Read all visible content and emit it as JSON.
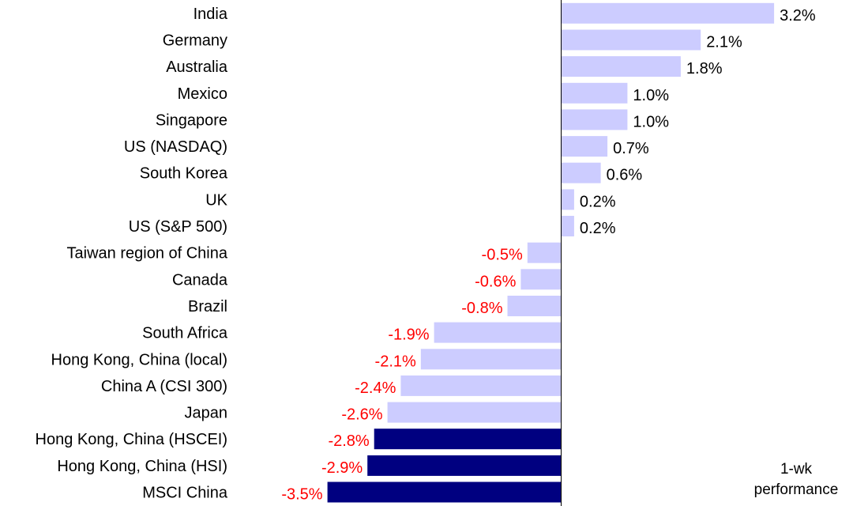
{
  "chart_data": {
    "type": "bar",
    "orientation": "horizontal",
    "categories": [
      "India",
      "Germany",
      "Australia",
      "Mexico",
      "Singapore",
      "US (NASDAQ)",
      "South Korea",
      "UK",
      "US (S&P 500)",
      "Taiwan region of China",
      "Canada",
      "Brazil",
      "South Africa",
      "Hong Kong, China (local)",
      "China A (CSI 300)",
      "Japan",
      "Hong Kong, China (HSCEI)",
      "Hong Kong, China (HSI)",
      "MSCI China"
    ],
    "values": [
      3.2,
      2.1,
      1.8,
      1.0,
      1.0,
      0.7,
      0.6,
      0.2,
      0.2,
      -0.5,
      -0.6,
      -0.8,
      -1.9,
      -2.1,
      -2.4,
      -2.6,
      -2.8,
      -2.9,
      -3.5
    ],
    "value_labels": [
      "3.2%",
      "2.1%",
      "1.8%",
      "1.0%",
      "1.0%",
      "0.7%",
      "0.6%",
      "0.2%",
      "0.2%",
      "-0.5%",
      "-0.6%",
      "-0.8%",
      "-1.9%",
      "-2.1%",
      "-2.4%",
      "-2.6%",
      "-2.8%",
      "-2.9%",
      "-3.5%"
    ],
    "highlighted": [
      "Hong Kong, China (HSCEI)",
      "Hong Kong, China (HSI)",
      "MSCI China"
    ],
    "colors": {
      "bar_default": "#ccccff",
      "bar_highlight": "#000080",
      "label_positive": "#000000",
      "label_negative": "#ff0000",
      "axis": "#000000"
    },
    "annotation": "1-wk performance",
    "xlim": [
      -3.5,
      3.2
    ],
    "title": "",
    "xlabel": "",
    "ylabel": "",
    "grid": false,
    "legend": "none"
  }
}
